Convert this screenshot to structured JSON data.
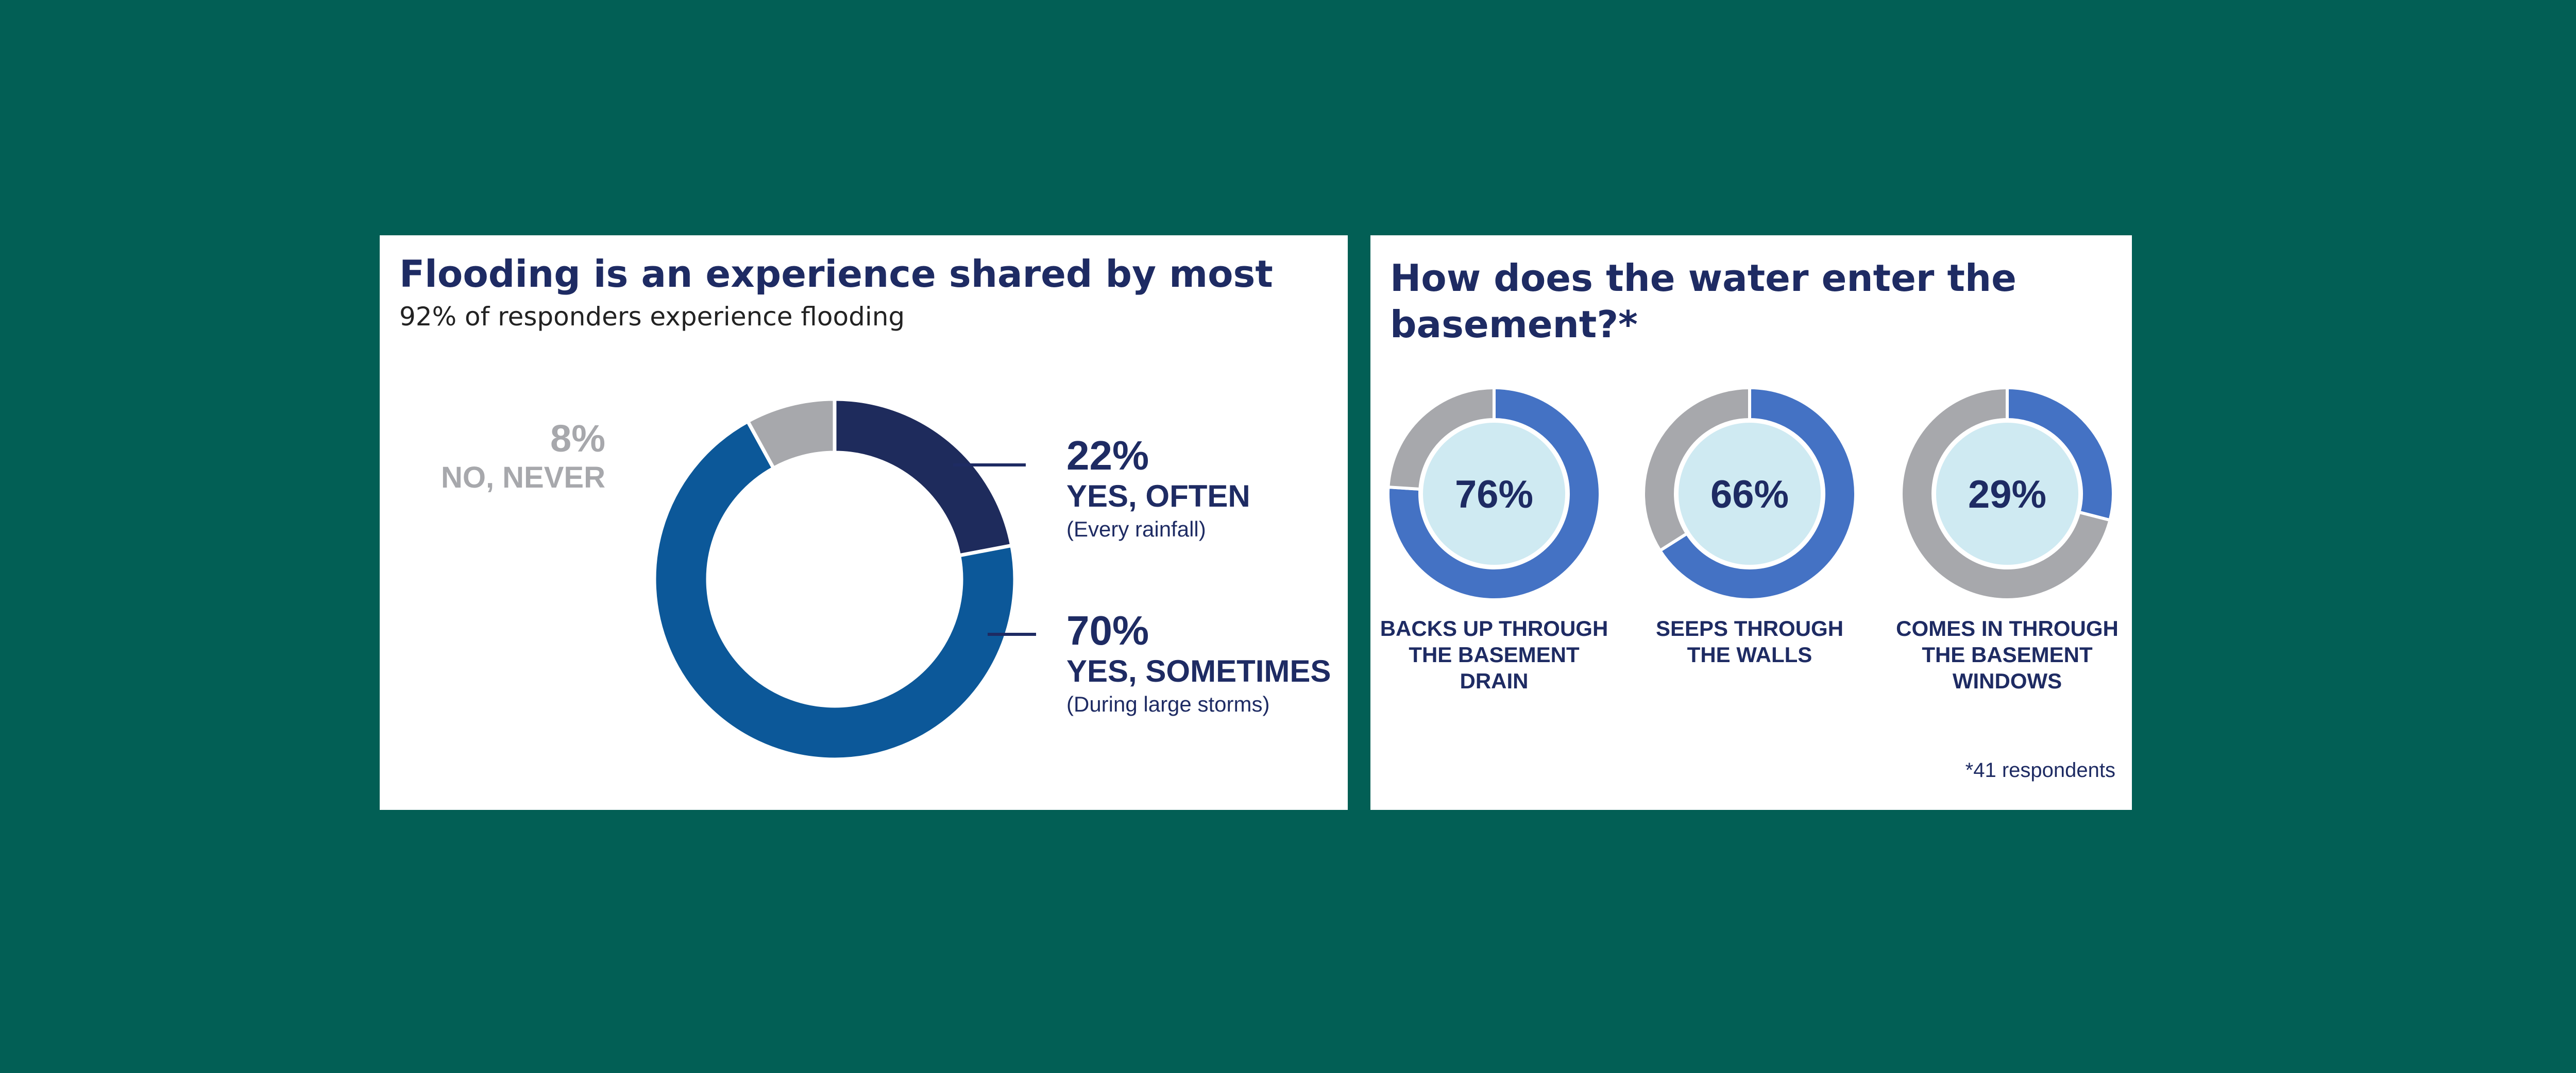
{
  "colors": {
    "background": "#025f55",
    "panel": "#ffffff",
    "navy": "#1e2b63",
    "dark_slice": "#1e2b5c",
    "blue_slice": "#0c5899",
    "gray_slice": "#a7a8ac",
    "ring_blue": "#4472c4",
    "ring_gray": "#a7a8ac",
    "ring_center": "#cfeaf2"
  },
  "left": {
    "title": "Flooding is an experience shared by most",
    "subtitle": "92% of responders experience flooding",
    "labels": {
      "never_pct": "8%",
      "never_label": "NO, NEVER",
      "often_pct": "22%",
      "often_label": "YES, OFTEN",
      "often_note": "(Every rainfall)",
      "sometimes_pct": "70%",
      "sometimes_label": "YES, SOMETIMES",
      "sometimes_note": "(During large storms)"
    }
  },
  "right": {
    "title_line1": "How does the water enter the",
    "title_line2": "basement?*",
    "footnote": "*41 respondents",
    "rings": [
      {
        "value": "76%",
        "caption": [
          "BACKS UP THROUGH",
          "THE BASEMENT",
          "DRAIN"
        ]
      },
      {
        "value": "66%",
        "caption": [
          "SEEPS THROUGH",
          "THE WALLS"
        ]
      },
      {
        "value": "29%",
        "caption": [
          "COMES IN THROUGH",
          "THE BASEMENT",
          "WINDOWS"
        ]
      }
    ]
  },
  "chart_data": [
    {
      "type": "pie",
      "title": "Flooding is an experience shared by most",
      "subtitle": "92% of responders experience flooding",
      "categories": [
        "YES, OFTEN",
        "YES, SOMETIMES",
        "NO, NEVER"
      ],
      "values": [
        22,
        70,
        8
      ],
      "colors": [
        "#1e2b5c",
        "#0c5899",
        "#a7a8ac"
      ],
      "notes": [
        "(Every rainfall)",
        "(During large storms)",
        ""
      ]
    },
    {
      "type": "pie",
      "title": "How does the water enter the basement?*",
      "categories": [
        "BACKS UP THROUGH THE BASEMENT DRAIN",
        "SEEPS THROUGH THE WALLS",
        "COMES IN THROUGH THE BASEMENT WINDOWS"
      ],
      "values": [
        76,
        66,
        29
      ],
      "footnote": "*41 respondents"
    }
  ]
}
